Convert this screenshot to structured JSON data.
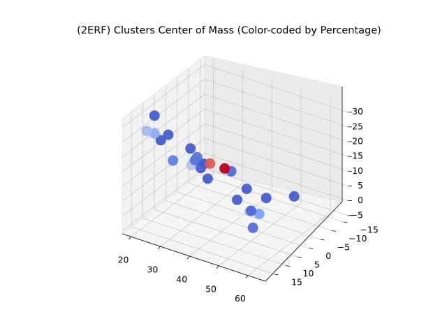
{
  "chart_data": {
    "type": "scatter",
    "title": "(2ERF) Clusters Center of Mass (Color-coded by Percentage)",
    "xlabel": "",
    "ylabel": "",
    "zlabel": "",
    "x_ticks": [
      "20",
      "30",
      "40",
      "50",
      "60"
    ],
    "y_ticks": [
      "−15",
      "−10",
      "−5",
      "0",
      "5",
      "10",
      "15"
    ],
    "z_ticks": [
      "−5",
      "0",
      "5",
      "10",
      "15",
      "20",
      "25",
      "30"
    ],
    "grid": true,
    "colormap": "coolwarm",
    "colors": {
      "low": "#3b4cc0",
      "high": "#b40426",
      "pane": "#f2f2f2"
    },
    "points": [
      {
        "x": 21,
        "y": 10,
        "z": 30,
        "level": 0.05
      },
      {
        "x": 21,
        "y": 10,
        "z": 24,
        "level": 0.3
      },
      {
        "x": 20,
        "y": 6,
        "z": 19,
        "level": 0.05
      },
      {
        "x": 21,
        "y": 4,
        "z": 20,
        "level": 0.05
      },
      {
        "x": 23,
        "y": 16,
        "z": 29,
        "level": 0.35
      },
      {
        "x": 25,
        "y": -1,
        "z": 8,
        "level": 0.4
      },
      {
        "x": 27,
        "y": 0,
        "z": 11,
        "level": 0.12
      },
      {
        "x": 29,
        "y": 0,
        "z": 9,
        "level": 0.05
      },
      {
        "x": 31,
        "y": 2,
        "z": 12,
        "level": 0.1
      },
      {
        "x": 34,
        "y": 5,
        "z": 15,
        "level": 0.05
      },
      {
        "x": 34,
        "y": 8,
        "z": 19,
        "level": 0.12
      },
      {
        "x": 32,
        "y": 16,
        "z": 22,
        "level": 0.15
      },
      {
        "x": 38,
        "y": 16,
        "z": 28,
        "level": 0.05
      },
      {
        "x": 40,
        "y": 10,
        "z": 20,
        "level": 0.85
      },
      {
        "x": 45,
        "y": 10,
        "z": 20,
        "level": 1.0
      },
      {
        "x": 41,
        "y": 2,
        "z": 13,
        "level": 0.1
      },
      {
        "x": 43,
        "y": 2,
        "z": 4,
        "level": 0.05
      },
      {
        "x": 47,
        "y": 1,
        "z": 1,
        "level": 0.08
      },
      {
        "x": 45,
        "y": -1,
        "z": -1,
        "level": 0.35
      },
      {
        "x": 49,
        "y": 0,
        "z": 0,
        "level": 0.25
      },
      {
        "x": 50,
        "y": 4,
        "z": -2,
        "level": 0.1
      },
      {
        "x": 22,
        "y": -12,
        "z": -4,
        "level": 0.05
      },
      {
        "x": 42,
        "y": -12,
        "z": -4,
        "level": 0.05
      },
      {
        "x": 40,
        "y": -6,
        "z": 2,
        "level": 0.05
      },
      {
        "x": 50,
        "y": -14,
        "z": -2,
        "level": 0.05
      }
    ]
  }
}
